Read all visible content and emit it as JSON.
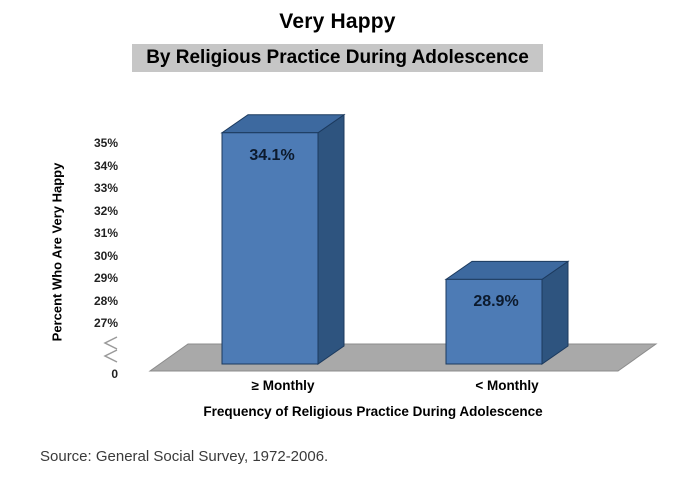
{
  "chart_data": {
    "type": "bar",
    "variant": "3d-column",
    "title": "Very Happy",
    "subtitle": "By Religious Practice During Adolescence",
    "ylabel": "Percent Who Are Very Happy",
    "xlabel": "Frequency of Religious Practice During Adolescence",
    "categories": [
      "≥ Monthly",
      "< Monthly"
    ],
    "values": [
      34.1,
      28.9
    ],
    "data_labels": [
      "34.1%",
      "28.9%"
    ],
    "yticks": [
      "35%",
      "34%",
      "33%",
      "32%",
      "31%",
      "30%",
      "29%",
      "28%",
      "27%"
    ],
    "y_origin_label": "0",
    "axis_break": true,
    "ylim": [
      27,
      35
    ],
    "legend": "none",
    "grid": false,
    "colors": {
      "bar_front": "#4d7bb5",
      "bar_top": "#3d699f",
      "bar_side": "#2e547f",
      "bar_edge": "#1c3a5e",
      "floor": "#a9a9a9",
      "floor_edge": "#8c8c8c",
      "axis_break_mark": "#9a9a9a",
      "subtitle_bg": "#c6c6c6"
    }
  },
  "source": "Source:  General Social Survey, 1972-2006."
}
